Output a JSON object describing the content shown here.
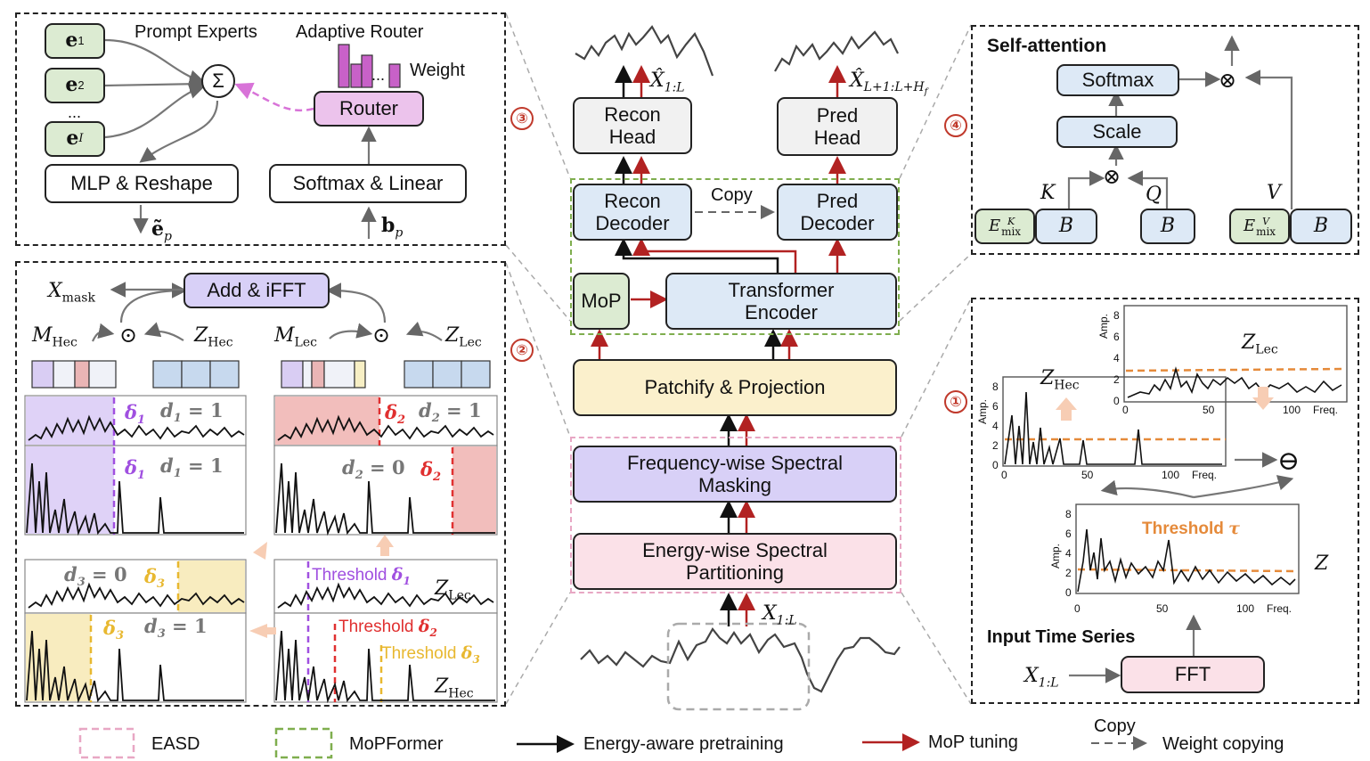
{
  "colors": {
    "pretrain_arrow": "#111111",
    "mop_arrow": "#b22222",
    "easd": "#e8a7c4",
    "mopformer": "#7fae4e",
    "orange_threshold": "#e58a3a"
  },
  "panel3": {
    "e1": "e",
    "e1_sub": "1",
    "e2": "e",
    "e2_sub": "2",
    "dots": "...",
    "eI": "e",
    "eI_sub": "I",
    "sum": "Σ",
    "prompt_experts": "Prompt Experts",
    "adaptive_router": "Adaptive Router",
    "weight": "Weight",
    "router": "Router",
    "mlp_reshape": "MLP & Reshape",
    "softmax_linear": "Softmax & Linear",
    "ep": "ẽ",
    "ep_sub": "p",
    "bp": "b",
    "bp_sub": "p",
    "router_bar_dots": "..."
  },
  "panel4": {
    "title": "Self-attention",
    "softmax": "Softmax",
    "scale": "Scale",
    "K": "K",
    "Q": "Q",
    "V": "V",
    "B": "B",
    "emix": "E",
    "emix_sub": "mix",
    "emixK_sup": "K",
    "emixV_sup": "V",
    "otimes": "⊗"
  },
  "center": {
    "x_recon": "X̂",
    "x_recon_sub": "1:L",
    "x_pred": "X̂",
    "x_pred_sub": "L+1:L+H",
    "x_pred_subsub": "f",
    "recon_head": "Recon Head",
    "pred_head": "Pred Head",
    "recon_decoder": "Recon Decoder",
    "pred_decoder": "Pred Decoder",
    "copy": "Copy",
    "mop": "MoP",
    "transformer_encoder": "Transformer Encoder",
    "patchify": "Patchify & Projection",
    "freq_masking": "Frequency-wise Spectral Masking",
    "energy_partition": "Energy-wise Spectral Partitioning",
    "x_input": "X",
    "x_input_sub": "1:L",
    "markers": [
      "③",
      "②",
      "④",
      "①"
    ]
  },
  "panel2": {
    "add_ifft": "Add & iFFT",
    "x_mask": "X",
    "x_mask_sub": "mask",
    "m_hec": "M",
    "m_hec_sub": "Hec",
    "z_hec": "Z",
    "z_hec_sub": "Hec",
    "m_lec": "M",
    "m_lec_sub": "Lec",
    "z_lec": "Z",
    "z_lec_sub": "Lec",
    "odot": "⊙",
    "delta1": "δ",
    "delta1_sub": "1",
    "delta2": "δ",
    "delta2_sub": "2",
    "delta3": "δ",
    "delta3_sub": "3",
    "d1": "d",
    "d1_sub": "1",
    "d1_val": " = 1",
    "d2": "d",
    "d2_sub": "2",
    "d2_val": " = 1",
    "d2_val2": " = 0",
    "d3": "d",
    "d3_sub": "3",
    "d3_val": " = 0",
    "d3_val2": " = 1",
    "threshold1": "Threshold",
    "threshold2": "Threshold",
    "threshold3": "Threshold"
  },
  "panel1": {
    "z_lec": "Z",
    "z_lec_sub": "Lec",
    "z_hec": "Z",
    "z_hec_sub": "Hec",
    "z": "Z",
    "amp": "Amp.",
    "freq": "Freq.",
    "yticks_big": [
      "0",
      "2",
      "4",
      "6",
      "8"
    ],
    "yticks_small": [
      "0",
      "2",
      "4",
      "6",
      "8"
    ],
    "xticks": [
      "0",
      "50",
      "100"
    ],
    "threshold_tau": "Threshold",
    "tau": "τ",
    "input_series": "Input Time Series",
    "fft": "FFT",
    "x_input": "X",
    "x_input_sub": "1:L",
    "ominus": "⊖"
  },
  "legend": {
    "easd": "EASD",
    "mopformer": "MoPFormer",
    "pretraining": "Energy-aware pretraining",
    "mop_tuning": "MoP tuning",
    "copy": "Copy",
    "weight_copying": "Weight copying"
  }
}
